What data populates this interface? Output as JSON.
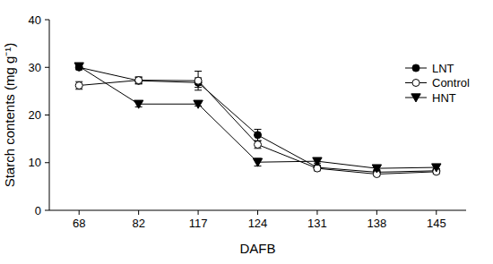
{
  "chart_data": {
    "type": "line",
    "x_label": "DAFB",
    "y_label": "Starch contents (mg g⁻¹)",
    "categories": [
      "68",
      "82",
      "117",
      "124",
      "131",
      "138",
      "145"
    ],
    "ylim": [
      0,
      40
    ],
    "yticks": [
      0,
      10,
      20,
      30,
      40
    ],
    "grid": false,
    "legend": "top-right",
    "series": [
      {
        "name": "LNT",
        "color": "#000000",
        "marker": "filled-circle",
        "line_style": "solid",
        "values": [
          30.0,
          27.2,
          26.8,
          15.8,
          9.0,
          8.0,
          8.3
        ],
        "errors": [
          0.5,
          0.7,
          1.0,
          1.2,
          0.4,
          0.3,
          0.3
        ]
      },
      {
        "name": "Control",
        "color": "#000000",
        "marker": "open-circle",
        "line_style": "solid",
        "values": [
          26.2,
          27.3,
          27.2,
          13.8,
          8.8,
          7.6,
          8.1
        ],
        "errors": [
          0.8,
          0.7,
          2.0,
          0.8,
          0.5,
          0.3,
          0.4
        ]
      },
      {
        "name": "HNT",
        "color": "#000000",
        "marker": "filled-triangle-down",
        "line_style": "solid",
        "values": [
          30.2,
          22.3,
          22.3,
          10.1,
          10.3,
          8.8,
          9.0
        ],
        "errors": [
          0.5,
          0.6,
          0.4,
          0.8,
          0.4,
          0.3,
          0.3
        ]
      }
    ]
  }
}
